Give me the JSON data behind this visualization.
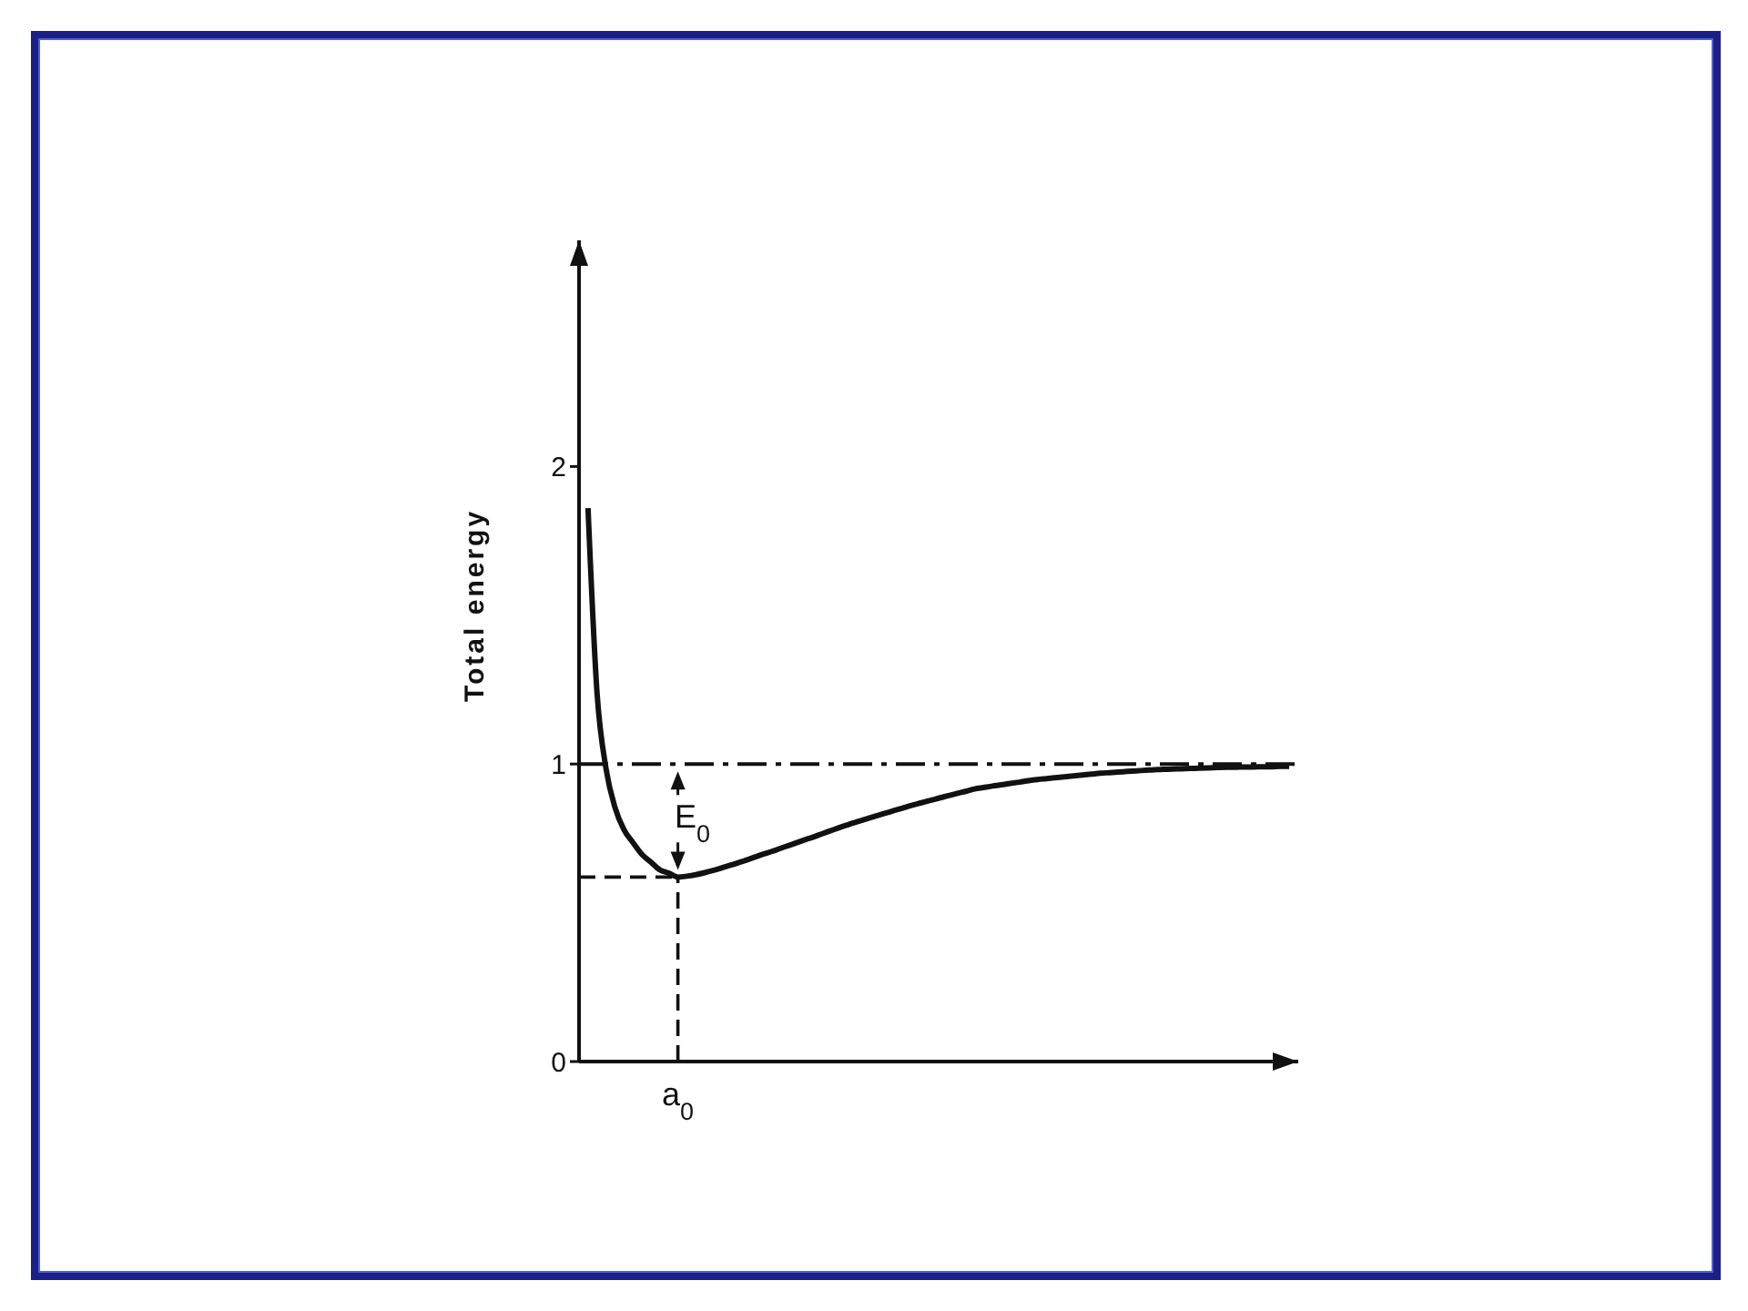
{
  "chart_data": {
    "type": "line",
    "ylabel": "Total energy",
    "ylim": [
      0,
      2.76
    ],
    "yticks": [
      0,
      1,
      2
    ],
    "categories": [
      null,
      null,
      null,
      null,
      null,
      null,
      null,
      null,
      null,
      null,
      null,
      "a$_{0}$",
      null,
      null,
      null,
      null,
      null,
      null,
      null,
      null,
      null,
      null,
      null,
      null,
      null,
      null,
      null,
      null,
      null,
      null,
      null,
      null,
      null,
      null,
      null,
      null,
      null,
      null,
      null,
      null,
      null,
      null,
      null,
      null,
      null,
      null,
      null,
      null,
      null,
      null,
      null,
      null,
      null,
      null,
      null,
      null,
      null,
      null,
      null,
      null,
      null,
      null,
      null,
      null,
      null,
      null,
      null,
      null,
      null,
      null,
      null,
      null,
      null,
      null,
      null,
      null,
      null,
      null,
      null,
      null
    ],
    "series": [
      {
        "color": "#111111",
        "line_style": "solid",
        "values": [
          null,
          1.86,
          1.241,
          0.985,
          0.854,
          0.779,
          0.736,
          0.696,
          0.67,
          0.644,
          0.633,
          0.62,
          0.623,
          0.628,
          0.635,
          0.643,
          0.652,
          0.661,
          0.671,
          0.681,
          0.692,
          0.702,
          0.712,
          0.723,
          0.733,
          0.744,
          0.754,
          0.765,
          0.776,
          0.787,
          0.797,
          0.807,
          0.816,
          0.825,
          0.834,
          0.843,
          0.852,
          0.861,
          0.869,
          0.877,
          0.885,
          0.893,
          0.901,
          0.908,
          0.916,
          0.921,
          0.926,
          0.93,
          0.935,
          0.939,
          0.944,
          0.948,
          0.951,
          0.954,
          0.957,
          0.96,
          0.963,
          0.966,
          0.969,
          0.971,
          0.973,
          0.975,
          0.977,
          0.979,
          0.981,
          0.982,
          0.983,
          0.984,
          0.985,
          0.986,
          0.987,
          0.988,
          0.989,
          0.989,
          0.99,
          0.99,
          0.991,
          0.991,
          0.992,
          0.992
        ]
      },
      {
        "color": "#111111",
        "line_style": "dashed",
        "values": [
          0.62,
          0.62,
          0.62,
          0.62,
          0.62,
          0.62,
          0.62,
          0.62,
          0.62,
          0.62,
          0.62,
          0.62,
          null,
          null,
          null,
          null,
          null,
          null,
          null,
          null,
          null,
          null,
          null,
          null,
          null,
          null,
          null,
          null,
          null,
          null,
          null,
          null,
          null,
          null,
          null,
          null,
          null,
          null,
          null,
          null,
          null,
          null,
          null,
          null,
          null,
          null,
          null,
          null,
          null,
          null,
          null,
          null,
          null,
          null,
          null,
          null,
          null,
          null,
          null,
          null,
          null,
          null,
          null,
          null,
          null,
          null,
          null,
          null,
          null,
          null,
          null,
          null,
          null,
          null,
          null,
          null,
          null,
          null,
          null,
          null
        ]
      },
      {
        "color": "#111111",
        "line_style": "dashed",
        "x": [
          "a$_{0}$",
          "a$_{0}$"
        ],
        "values": [
          0,
          0.62
        ]
      }
    ],
    "ref_lines": [
      {
        "axis": "y",
        "value": 1,
        "color": "#111111",
        "line_style": "dashdot"
      }
    ],
    "annotations": [
      "E$_{0}$"
    ]
  }
}
